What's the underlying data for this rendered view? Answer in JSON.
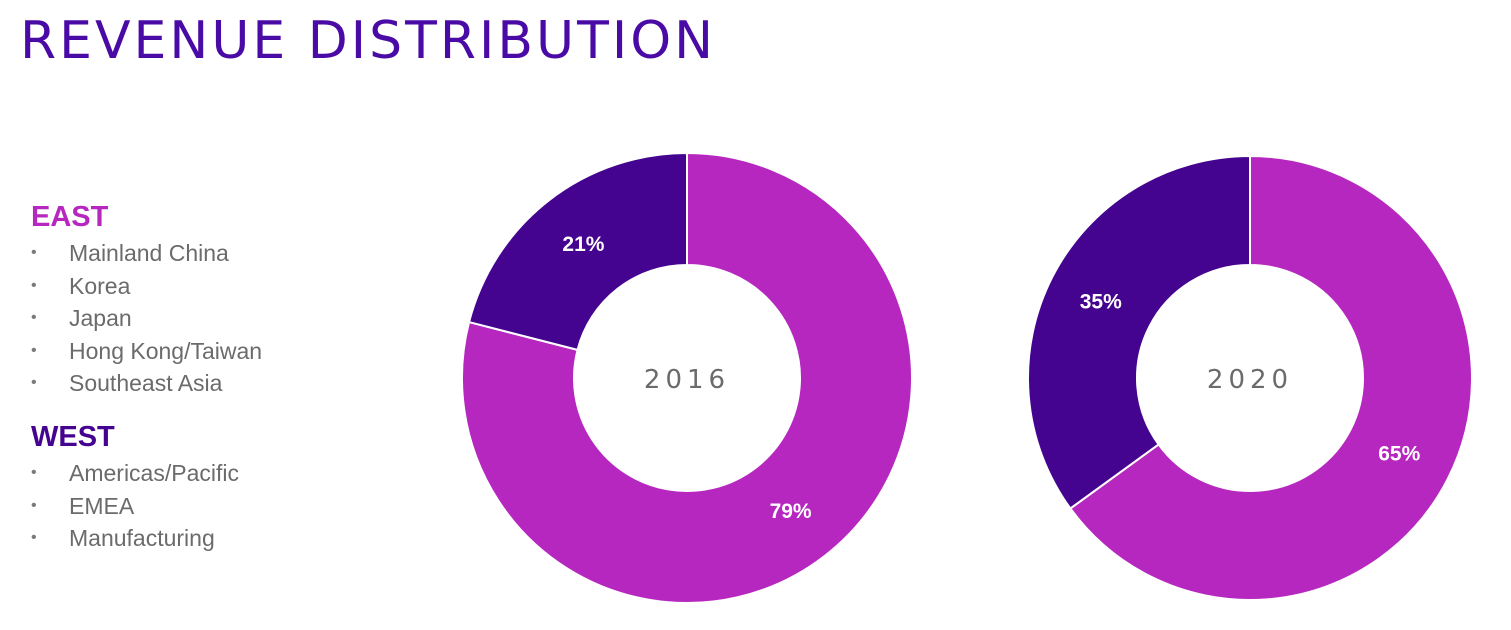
{
  "title": "REVENUE DISTRIBUTION",
  "legend": {
    "east": {
      "heading": "EAST",
      "color": "#b627bf",
      "items": [
        "Mainland China",
        "Korea",
        "Japan",
        "Hong Kong/Taiwan",
        "Southeast Asia"
      ]
    },
    "west": {
      "heading": "WEST",
      "color": "#44048f",
      "items": [
        "Americas/Pacific",
        "EMEA",
        "Manufacturing"
      ]
    }
  },
  "chart_data": [
    {
      "type": "pie",
      "center_label": "2016",
      "slices": [
        {
          "name": "EAST",
          "value": 79,
          "label": "79%",
          "color": "#b627bf"
        },
        {
          "name": "WEST",
          "value": 21,
          "label": "21%",
          "color": "#44048f"
        }
      ]
    },
    {
      "type": "pie",
      "center_label": "2020",
      "slices": [
        {
          "name": "EAST",
          "value": 65,
          "label": "65%",
          "color": "#b627bf"
        },
        {
          "name": "WEST",
          "value": 35,
          "label": "35%",
          "color": "#44048f"
        }
      ]
    }
  ]
}
